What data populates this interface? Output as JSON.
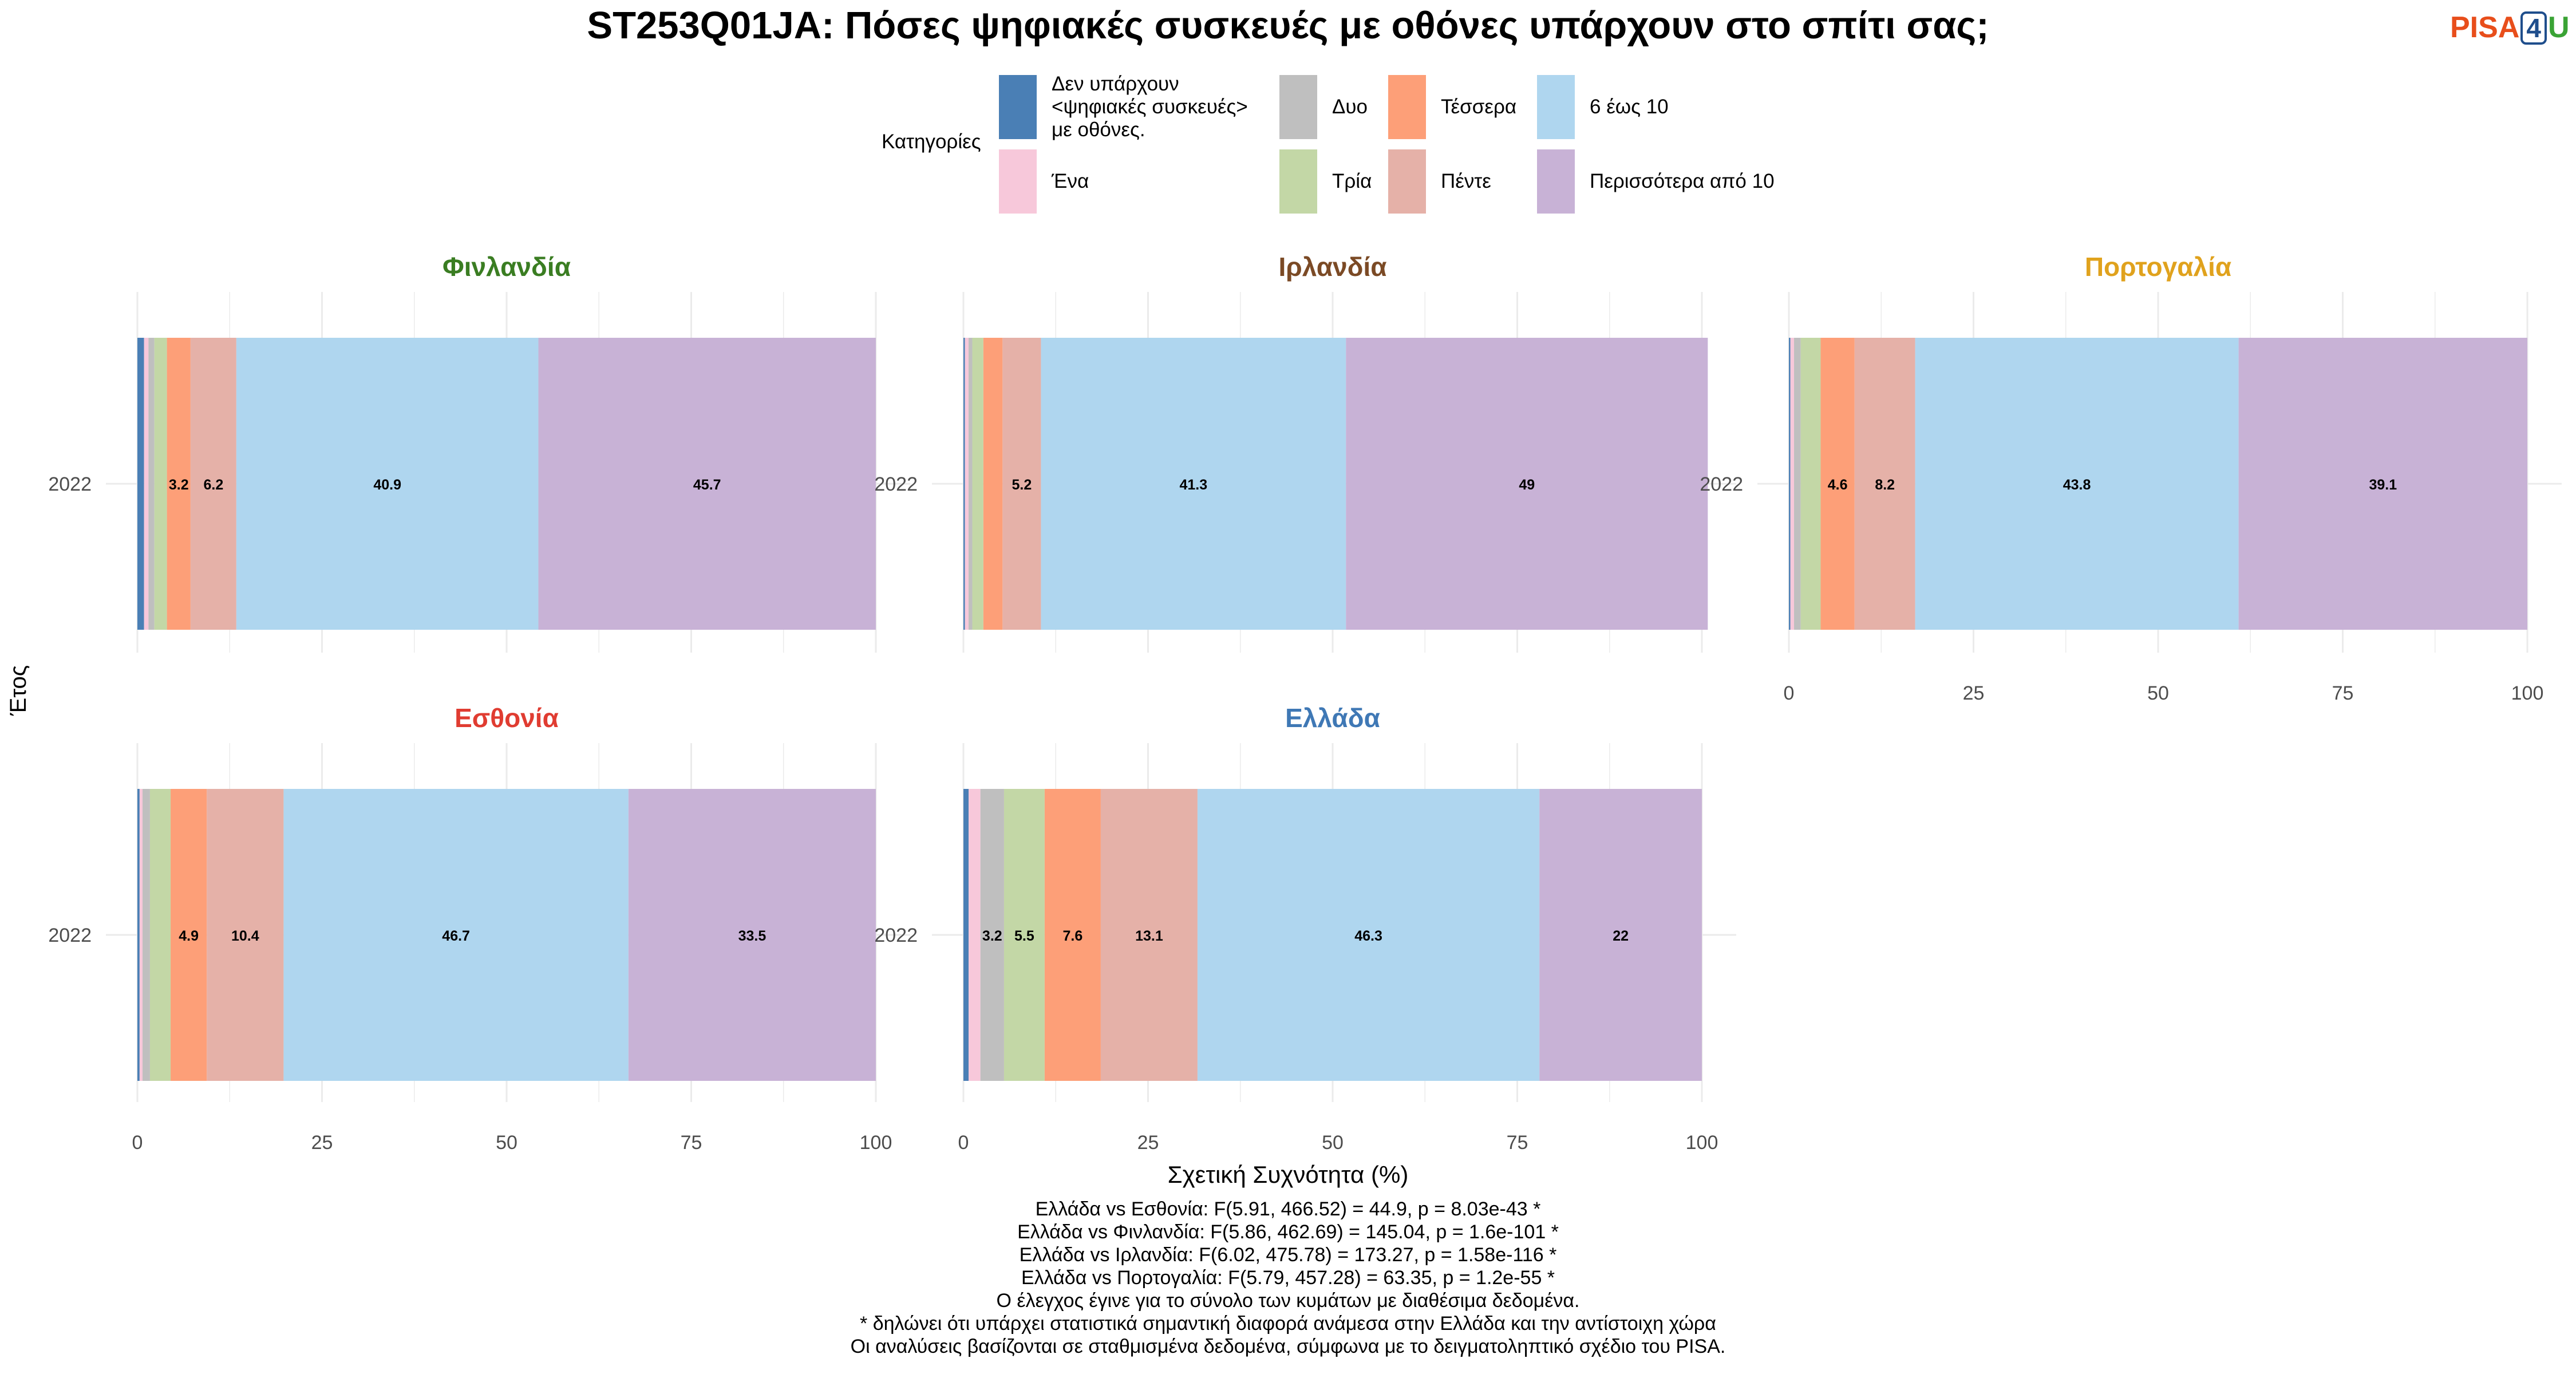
{
  "title": "ST253Q01JA: Πόσες ψηφιακές συσκευές με οθόνες υπάρχουν στο σπίτι σας;",
  "logo": {
    "p": "PISA",
    "n": "4",
    "u": "U",
    "colors": {
      "pisa": "#e84e1b",
      "four": "#1f4e8c",
      "u": "#3aa335"
    }
  },
  "legend": {
    "title": "Κατηγορίες",
    "items": [
      {
        "label": "Δεν υπάρχουν\n<ψηφιακές συσκευές>\nμε οθόνες.",
        "color": "#4a7fb5"
      },
      {
        "label": "Ένα",
        "color": "#f7c8da"
      },
      {
        "label": "Δυο",
        "color": "#bfbfbf"
      },
      {
        "label": "Τρία",
        "color": "#c3d7a6"
      },
      {
        "label": "Τέσσερα",
        "color": "#fd9f78"
      },
      {
        "label": "Πέντε",
        "color": "#e5b1a8"
      },
      {
        "label": "6 έως 10",
        "color": "#afd6ef"
      },
      {
        "label": "Περισσότερα από 10",
        "color": "#c8b2d6"
      }
    ]
  },
  "axis": {
    "ylabel": "Έτος",
    "xlabel": "Σχετική Συχνότητα (%)"
  },
  "notes": [
    "Ελλάδα vs Εσθονία: F(5.91, 466.52) = 44.9, p = 8.03e-43 *",
    "Ελλάδα vs Φινλανδία: F(5.86, 462.69) = 145.04, p = 1.6e-101 *",
    "Ελλάδα vs Ιρλανδία: F(6.02, 475.78) = 173.27, p = 1.58e-116 *",
    "Ελλάδα vs Πορτογαλία: F(5.79, 457.28) = 63.35, p = 1.2e-55 *",
    "Ο έλεγχος έγινε για το σύνολο των κυμάτων με διαθέσιμα δεδομένα.",
    "* δηλώνει ότι υπάρχει στατιστικά σημαντική διαφορά ανάμεσα στην Ελλάδα και την αντίστοιχη χώρα",
    "Οι αναλύσεις βασίζονται σε σταθμισμένα δεδομένα, σύμφωνα με το δειγματοληπτικό σχέδιο του PISA."
  ],
  "chart_data": {
    "type": "bar",
    "orientation": "horizontal-stacked",
    "xlim": [
      0,
      100
    ],
    "xticks": [
      "0",
      "25",
      "50",
      "75",
      "100"
    ],
    "categories": [
      "2022"
    ],
    "grid": true,
    "panels": [
      {
        "name": "Φινλανδία",
        "title_color": "#3a7d22",
        "values": [
          0.9,
          0.6,
          0.8,
          1.7,
          3.2,
          6.2,
          40.9,
          45.7
        ],
        "labels": [
          "",
          "",
          "",
          "",
          "3.2",
          "6.2",
          "40.9",
          "45.7"
        ]
      },
      {
        "name": "Ιρλανδία",
        "title_color": "#7b4a25",
        "values": [
          0.2,
          0.5,
          0.5,
          1.5,
          2.6,
          5.2,
          41.3,
          49.0
        ],
        "labels": [
          "",
          "",
          "",
          "",
          "",
          "5.2",
          "41.3",
          "49"
        ]
      },
      {
        "name": "Πορτογαλία",
        "title_color": "#e0a21d",
        "values": [
          0.2,
          0.5,
          0.9,
          2.7,
          4.6,
          8.2,
          43.8,
          39.1
        ],
        "labels": [
          "",
          "",
          "",
          "",
          "4.6",
          "8.2",
          "43.8",
          "39.1"
        ]
      },
      {
        "name": "Εσθονία",
        "title_color": "#e03c31",
        "values": [
          0.3,
          0.4,
          1.0,
          2.8,
          4.9,
          10.4,
          46.7,
          33.5
        ],
        "labels": [
          "",
          "",
          "",
          "",
          "4.9",
          "10.4",
          "46.7",
          "33.5"
        ]
      },
      {
        "name": "Ελλάδα",
        "title_color": "#3f78b5",
        "values": [
          0.7,
          1.6,
          3.2,
          5.5,
          7.6,
          13.1,
          46.3,
          22.0
        ],
        "labels": [
          "",
          "",
          "3.2",
          "5.5",
          "7.6",
          "13.1",
          "46.3",
          "22"
        ]
      }
    ]
  }
}
